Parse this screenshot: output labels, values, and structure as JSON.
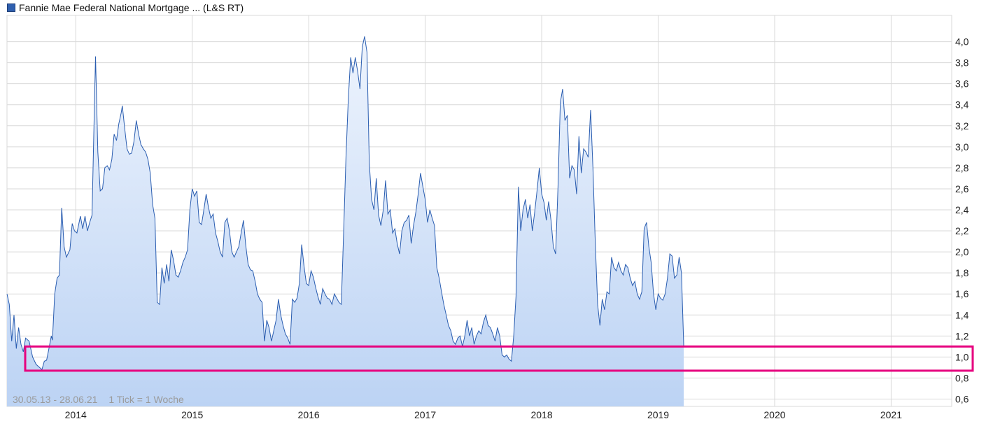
{
  "legend": {
    "series_name": "Fannie Mae Federal National Mortgage ... (L&S RT)"
  },
  "footnote": {
    "range": "30.05.13 - 28.06.21",
    "interval": "1 Tick = 1 Woche"
  },
  "colors": {
    "line": "#2a5db0",
    "fill_top": "#eef4fd",
    "fill_bottom": "#bcd3f4",
    "highlight": "#e6007e",
    "grid": "#d9d9d9"
  },
  "highlight_box": {
    "y_range": [
      0.87,
      1.1
    ],
    "x_range": [
      "2013-07",
      "2021-07"
    ]
  },
  "chart_data": {
    "type": "area",
    "title": "",
    "xlabel": "",
    "ylabel": "",
    "x_ticks": [
      "2014",
      "2015",
      "2016",
      "2017",
      "2018",
      "2019",
      "2020",
      "2021"
    ],
    "y_ticks": [
      "0,6",
      "0,8",
      "1,0",
      "1,2",
      "1,4",
      "1,6",
      "1,8",
      "2,0",
      "2,2",
      "2,4",
      "2,6",
      "2,8",
      "3,0",
      "3,2",
      "3,4",
      "3,6",
      "3,8",
      "4,0"
    ],
    "ylim": [
      0.53,
      4.25
    ],
    "xlim": [
      2013.41,
      2021.52
    ],
    "grid": true,
    "legend_position": "top-left",
    "series": [
      {
        "name": "Fannie Mae Federal National Mortgage ... (L&S RT)",
        "points": [
          [
            2013.41,
            1.6
          ],
          [
            2013.43,
            1.5
          ],
          [
            2013.45,
            1.15
          ],
          [
            2013.47,
            1.4
          ],
          [
            2013.49,
            1.08
          ],
          [
            2013.51,
            1.28
          ],
          [
            2013.53,
            1.12
          ],
          [
            2013.55,
            1.05
          ],
          [
            2013.57,
            1.18
          ],
          [
            2013.6,
            1.15
          ],
          [
            2013.63,
            1.0
          ],
          [
            2013.66,
            0.93
          ],
          [
            2013.69,
            0.9
          ],
          [
            2013.71,
            0.88
          ],
          [
            2013.73,
            0.96
          ],
          [
            2013.75,
            0.97
          ],
          [
            2013.77,
            1.08
          ],
          [
            2013.79,
            1.2
          ],
          [
            2013.8,
            1.16
          ],
          [
            2013.82,
            1.6
          ],
          [
            2013.84,
            1.75
          ],
          [
            2013.86,
            1.78
          ],
          [
            2013.88,
            2.42
          ],
          [
            2013.9,
            2.05
          ],
          [
            2013.92,
            1.95
          ],
          [
            2013.95,
            2.02
          ],
          [
            2013.97,
            2.27
          ],
          [
            2013.99,
            2.2
          ],
          [
            2014.01,
            2.18
          ],
          [
            2014.04,
            2.34
          ],
          [
            2014.06,
            2.22
          ],
          [
            2014.08,
            2.34
          ],
          [
            2014.1,
            2.2
          ],
          [
            2014.12,
            2.28
          ],
          [
            2014.14,
            2.35
          ],
          [
            2014.16,
            3.35
          ],
          [
            2014.17,
            3.86
          ],
          [
            2014.19,
            2.95
          ],
          [
            2014.21,
            2.58
          ],
          [
            2014.23,
            2.6
          ],
          [
            2014.25,
            2.8
          ],
          [
            2014.27,
            2.82
          ],
          [
            2014.29,
            2.78
          ],
          [
            2014.31,
            2.88
          ],
          [
            2014.33,
            3.12
          ],
          [
            2014.35,
            3.06
          ],
          [
            2014.37,
            3.22
          ],
          [
            2014.39,
            3.32
          ],
          [
            2014.4,
            3.39
          ],
          [
            2014.42,
            3.18
          ],
          [
            2014.44,
            2.98
          ],
          [
            2014.46,
            2.93
          ],
          [
            2014.48,
            2.94
          ],
          [
            2014.5,
            3.05
          ],
          [
            2014.52,
            3.25
          ],
          [
            2014.54,
            3.12
          ],
          [
            2014.56,
            3.02
          ],
          [
            2014.58,
            2.98
          ],
          [
            2014.6,
            2.95
          ],
          [
            2014.62,
            2.88
          ],
          [
            2014.64,
            2.75
          ],
          [
            2014.66,
            2.45
          ],
          [
            2014.68,
            2.32
          ],
          [
            2014.7,
            1.52
          ],
          [
            2014.72,
            1.5
          ],
          [
            2014.74,
            1.85
          ],
          [
            2014.76,
            1.7
          ],
          [
            2014.78,
            1.88
          ],
          [
            2014.8,
            1.72
          ],
          [
            2014.82,
            2.02
          ],
          [
            2014.84,
            1.92
          ],
          [
            2014.86,
            1.78
          ],
          [
            2014.88,
            1.76
          ],
          [
            2014.9,
            1.82
          ],
          [
            2014.92,
            1.9
          ],
          [
            2014.94,
            1.95
          ],
          [
            2014.96,
            2.02
          ],
          [
            2014.98,
            2.4
          ],
          [
            2015.0,
            2.6
          ],
          [
            2015.02,
            2.53
          ],
          [
            2015.04,
            2.58
          ],
          [
            2015.06,
            2.28
          ],
          [
            2015.08,
            2.26
          ],
          [
            2015.1,
            2.4
          ],
          [
            2015.12,
            2.55
          ],
          [
            2015.14,
            2.42
          ],
          [
            2015.16,
            2.32
          ],
          [
            2015.18,
            2.36
          ],
          [
            2015.2,
            2.18
          ],
          [
            2015.22,
            2.1
          ],
          [
            2015.24,
            2.0
          ],
          [
            2015.26,
            1.95
          ],
          [
            2015.28,
            2.28
          ],
          [
            2015.3,
            2.32
          ],
          [
            2015.32,
            2.2
          ],
          [
            2015.34,
            2.0
          ],
          [
            2015.36,
            1.95
          ],
          [
            2015.38,
            2.0
          ],
          [
            2015.4,
            2.05
          ],
          [
            2015.42,
            2.18
          ],
          [
            2015.44,
            2.3
          ],
          [
            2015.46,
            2.06
          ],
          [
            2015.48,
            1.88
          ],
          [
            2015.5,
            1.83
          ],
          [
            2015.52,
            1.82
          ],
          [
            2015.54,
            1.72
          ],
          [
            2015.56,
            1.6
          ],
          [
            2015.58,
            1.55
          ],
          [
            2015.6,
            1.52
          ],
          [
            2015.62,
            1.15
          ],
          [
            2015.64,
            1.35
          ],
          [
            2015.66,
            1.28
          ],
          [
            2015.68,
            1.15
          ],
          [
            2015.7,
            1.25
          ],
          [
            2015.72,
            1.35
          ],
          [
            2015.74,
            1.55
          ],
          [
            2015.76,
            1.4
          ],
          [
            2015.78,
            1.3
          ],
          [
            2015.8,
            1.22
          ],
          [
            2015.82,
            1.18
          ],
          [
            2015.84,
            1.12
          ],
          [
            2015.86,
            1.55
          ],
          [
            2015.88,
            1.52
          ],
          [
            2015.9,
            1.56
          ],
          [
            2015.92,
            1.7
          ],
          [
            2015.94,
            2.07
          ],
          [
            2015.96,
            1.86
          ],
          [
            2015.98,
            1.7
          ],
          [
            2016.0,
            1.68
          ],
          [
            2016.02,
            1.82
          ],
          [
            2016.04,
            1.76
          ],
          [
            2016.06,
            1.66
          ],
          [
            2016.08,
            1.57
          ],
          [
            2016.1,
            1.5
          ],
          [
            2016.12,
            1.65
          ],
          [
            2016.14,
            1.6
          ],
          [
            2016.16,
            1.56
          ],
          [
            2016.18,
            1.55
          ],
          [
            2016.2,
            1.5
          ],
          [
            2016.22,
            1.6
          ],
          [
            2016.24,
            1.56
          ],
          [
            2016.26,
            1.52
          ],
          [
            2016.28,
            1.5
          ],
          [
            2016.3,
            2.2
          ],
          [
            2016.32,
            2.9
          ],
          [
            2016.34,
            3.45
          ],
          [
            2016.36,
            3.85
          ],
          [
            2016.38,
            3.7
          ],
          [
            2016.4,
            3.85
          ],
          [
            2016.42,
            3.72
          ],
          [
            2016.44,
            3.55
          ],
          [
            2016.46,
            3.95
          ],
          [
            2016.48,
            4.05
          ],
          [
            2016.5,
            3.9
          ],
          [
            2016.52,
            2.85
          ],
          [
            2016.54,
            2.5
          ],
          [
            2016.56,
            2.4
          ],
          [
            2016.58,
            2.7
          ],
          [
            2016.6,
            2.35
          ],
          [
            2016.62,
            2.25
          ],
          [
            2016.64,
            2.4
          ],
          [
            2016.66,
            2.68
          ],
          [
            2016.68,
            2.36
          ],
          [
            2016.7,
            2.4
          ],
          [
            2016.72,
            2.18
          ],
          [
            2016.74,
            2.22
          ],
          [
            2016.76,
            2.08
          ],
          [
            2016.78,
            1.98
          ],
          [
            2016.8,
            2.2
          ],
          [
            2016.82,
            2.28
          ],
          [
            2016.84,
            2.3
          ],
          [
            2016.86,
            2.35
          ],
          [
            2016.88,
            2.08
          ],
          [
            2016.9,
            2.25
          ],
          [
            2016.92,
            2.38
          ],
          [
            2016.94,
            2.55
          ],
          [
            2016.96,
            2.75
          ],
          [
            2016.98,
            2.62
          ],
          [
            2017.0,
            2.5
          ],
          [
            2017.02,
            2.28
          ],
          [
            2017.04,
            2.4
          ],
          [
            2017.06,
            2.32
          ],
          [
            2017.08,
            2.25
          ],
          [
            2017.1,
            1.85
          ],
          [
            2017.12,
            1.75
          ],
          [
            2017.14,
            1.62
          ],
          [
            2017.16,
            1.5
          ],
          [
            2017.18,
            1.4
          ],
          [
            2017.2,
            1.3
          ],
          [
            2017.22,
            1.25
          ],
          [
            2017.24,
            1.15
          ],
          [
            2017.26,
            1.12
          ],
          [
            2017.28,
            1.18
          ],
          [
            2017.3,
            1.2
          ],
          [
            2017.32,
            1.1
          ],
          [
            2017.34,
            1.2
          ],
          [
            2017.36,
            1.35
          ],
          [
            2017.38,
            1.2
          ],
          [
            2017.4,
            1.28
          ],
          [
            2017.42,
            1.12
          ],
          [
            2017.44,
            1.2
          ],
          [
            2017.46,
            1.25
          ],
          [
            2017.48,
            1.22
          ],
          [
            2017.5,
            1.33
          ],
          [
            2017.52,
            1.4
          ],
          [
            2017.54,
            1.3
          ],
          [
            2017.56,
            1.28
          ],
          [
            2017.58,
            1.22
          ],
          [
            2017.6,
            1.15
          ],
          [
            2017.62,
            1.28
          ],
          [
            2017.64,
            1.2
          ],
          [
            2017.66,
            1.02
          ],
          [
            2017.68,
            1.0
          ],
          [
            2017.7,
            1.02
          ],
          [
            2017.72,
            0.98
          ],
          [
            2017.74,
            0.96
          ],
          [
            2017.76,
            1.2
          ],
          [
            2017.78,
            1.58
          ],
          [
            2017.8,
            2.62
          ],
          [
            2017.82,
            2.2
          ],
          [
            2017.84,
            2.4
          ],
          [
            2017.86,
            2.5
          ],
          [
            2017.88,
            2.32
          ],
          [
            2017.9,
            2.45
          ],
          [
            2017.92,
            2.2
          ],
          [
            2017.94,
            2.38
          ],
          [
            2017.96,
            2.58
          ],
          [
            2017.98,
            2.8
          ],
          [
            2018.0,
            2.55
          ],
          [
            2018.02,
            2.47
          ],
          [
            2018.04,
            2.3
          ],
          [
            2018.06,
            2.48
          ],
          [
            2018.08,
            2.3
          ],
          [
            2018.1,
            2.05
          ],
          [
            2018.12,
            1.98
          ],
          [
            2018.14,
            2.62
          ],
          [
            2018.16,
            3.42
          ],
          [
            2018.18,
            3.55
          ],
          [
            2018.2,
            3.25
          ],
          [
            2018.22,
            3.3
          ],
          [
            2018.24,
            2.7
          ],
          [
            2018.26,
            2.82
          ],
          [
            2018.28,
            2.78
          ],
          [
            2018.3,
            2.55
          ],
          [
            2018.32,
            3.1
          ],
          [
            2018.34,
            2.75
          ],
          [
            2018.36,
            2.98
          ],
          [
            2018.38,
            2.95
          ],
          [
            2018.4,
            2.9
          ],
          [
            2018.42,
            3.35
          ],
          [
            2018.44,
            2.8
          ],
          [
            2018.46,
            2.1
          ],
          [
            2018.48,
            1.5
          ],
          [
            2018.5,
            1.3
          ],
          [
            2018.52,
            1.55
          ],
          [
            2018.54,
            1.45
          ],
          [
            2018.56,
            1.62
          ],
          [
            2018.58,
            1.6
          ],
          [
            2018.6,
            1.95
          ],
          [
            2018.62,
            1.85
          ],
          [
            2018.64,
            1.82
          ],
          [
            2018.66,
            1.9
          ],
          [
            2018.68,
            1.82
          ],
          [
            2018.7,
            1.78
          ],
          [
            2018.72,
            1.88
          ],
          [
            2018.74,
            1.85
          ],
          [
            2018.76,
            1.75
          ],
          [
            2018.78,
            1.68
          ],
          [
            2018.8,
            1.72
          ],
          [
            2018.82,
            1.6
          ],
          [
            2018.84,
            1.55
          ],
          [
            2018.86,
            1.62
          ],
          [
            2018.88,
            2.22
          ],
          [
            2018.9,
            2.28
          ],
          [
            2018.92,
            2.05
          ],
          [
            2018.94,
            1.9
          ],
          [
            2018.96,
            1.6
          ],
          [
            2018.98,
            1.45
          ],
          [
            2019.0,
            1.6
          ],
          [
            2019.02,
            1.56
          ],
          [
            2019.04,
            1.54
          ],
          [
            2019.06,
            1.6
          ],
          [
            2019.08,
            1.75
          ],
          [
            2019.1,
            1.98
          ],
          [
            2019.12,
            1.96
          ],
          [
            2019.14,
            1.75
          ],
          [
            2019.16,
            1.78
          ],
          [
            2019.18,
            1.95
          ],
          [
            2019.2,
            1.8
          ],
          [
            2019.22,
            1.1
          ]
        ]
      }
    ]
  }
}
